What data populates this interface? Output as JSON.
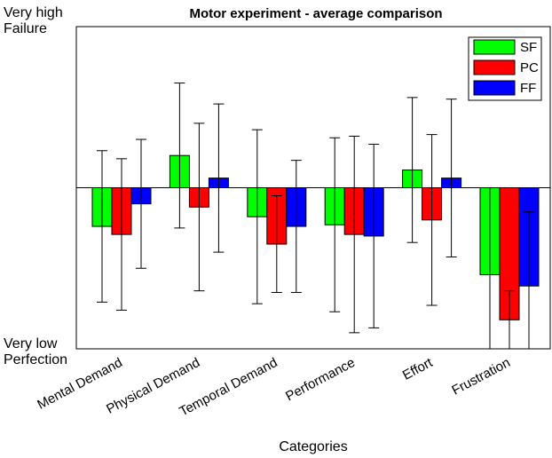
{
  "chart_data": {
    "type": "bar",
    "title": "Motor experiment - average comparison",
    "x_label": "Categories",
    "categories": [
      "Mental Demand",
      "Physical Demand",
      "Temporal Demand",
      "Performance",
      "Effort",
      "Frustration"
    ],
    "series": [
      {
        "name": "SF",
        "color": "#00ff00",
        "values": [
          -0.24,
          0.2,
          -0.18,
          -0.23,
          0.11,
          -0.54
        ],
        "errors": [
          0.47,
          0.45,
          0.54,
          0.54,
          0.45,
          0.54
        ]
      },
      {
        "name": "PC",
        "color": "#ff0000",
        "values": [
          -0.29,
          -0.12,
          -0.35,
          -0.29,
          -0.2,
          -0.82
        ],
        "errors": [
          0.47,
          0.52,
          0.3,
          0.61,
          0.53,
          0.18
        ]
      },
      {
        "name": "FF",
        "color": "#0000ff",
        "values": [
          -0.1,
          0.06,
          -0.24,
          -0.3,
          0.06,
          -0.61
        ],
        "errors": [
          0.4,
          0.46,
          0.41,
          0.57,
          0.49,
          0.46
        ]
      }
    ],
    "ylim": [
      -1,
      1
    ],
    "yticks": [
      {
        "value": -1,
        "label": "Very low Perfection"
      },
      {
        "value": 1,
        "label": "Very high Failure"
      }
    ],
    "legend": "upper right"
  }
}
